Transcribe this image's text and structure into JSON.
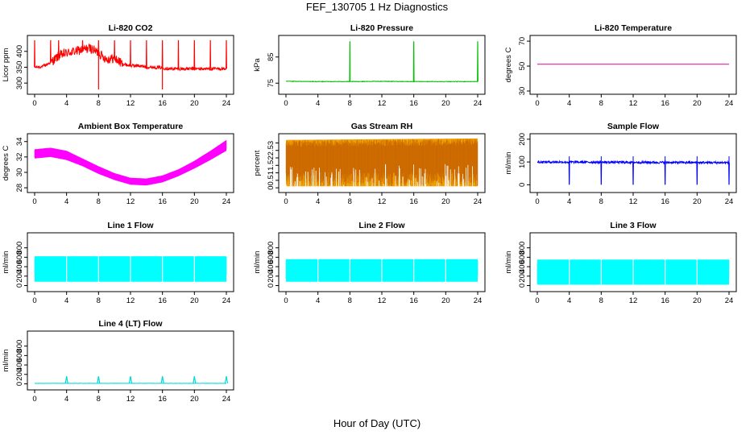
{
  "figure": {
    "title": "FEF_130705  1 Hz Diagnostics",
    "xlabel": "Hour of Day (UTC)"
  },
  "chart_data": [
    {
      "type": "line",
      "title": "Li-820 CO2",
      "ylabel": "Licor ppm",
      "color": "#ff0000",
      "xlim": [
        0,
        24
      ],
      "xticks": [
        0,
        4,
        8,
        12,
        16,
        20,
        24
      ],
      "ylim": [
        275,
        440
      ],
      "yticks": [
        300,
        350,
        400
      ],
      "series": [
        {
          "x": [
            0,
            1,
            2,
            3,
            4,
            5,
            6,
            7,
            8,
            9,
            10,
            11,
            12,
            13,
            14,
            15,
            16,
            17,
            18,
            19,
            20,
            21,
            22,
            23,
            24
          ],
          "values": [
            350,
            352,
            365,
            385,
            395,
            400,
            405,
            410,
            395,
            375,
            378,
            360,
            355,
            355,
            350,
            350,
            348,
            345,
            345,
            345,
            345,
            345,
            345,
            345,
            345
          ]
        }
      ],
      "spikes_at": [
        0,
        2,
        3,
        6,
        8,
        10,
        12,
        14,
        16,
        18,
        20,
        22,
        24
      ]
    },
    {
      "type": "line",
      "title": "Li-820 Pressure",
      "ylabel": "kPa",
      "color": "#00c000",
      "xlim": [
        0,
        24
      ],
      "xticks": [
        0,
        4,
        8,
        12,
        16,
        20,
        24
      ],
      "ylim": [
        72,
        92
      ],
      "yticks": [
        75,
        85
      ],
      "series": [
        {
          "x": [
            0,
            4,
            8,
            12,
            16,
            20,
            24
          ],
          "values": [
            75.7,
            75.6,
            75.6,
            75.7,
            75.6,
            75.6,
            75.6
          ]
        }
      ],
      "spikes_at": [
        8,
        16,
        24
      ],
      "spike_value": 91
    },
    {
      "type": "line",
      "title": "Li-820 Temperature",
      "ylabel": "degrees C",
      "color": "#e000a0",
      "xlim": [
        0,
        24
      ],
      "xticks": [
        0,
        4,
        8,
        12,
        16,
        20,
        24
      ],
      "ylim": [
        30,
        72
      ],
      "yticks": [
        30,
        50,
        70
      ],
      "series": [
        {
          "x": [
            0,
            24
          ],
          "values": [
            51.5,
            51.5
          ]
        }
      ]
    },
    {
      "type": "area",
      "title": "Ambient Box Temperature",
      "ylabel": "degrees C",
      "color": "#ff00ff",
      "xlim": [
        0,
        24
      ],
      "xticks": [
        0,
        4,
        8,
        12,
        16,
        20,
        24
      ],
      "ylim": [
        27.8,
        34.6
      ],
      "yticks": [
        28,
        30,
        32,
        34
      ],
      "series": [
        {
          "name": "max",
          "x": [
            0,
            2,
            4,
            6,
            8,
            10,
            12,
            14,
            16,
            18,
            20,
            22,
            24
          ],
          "values": [
            33.0,
            33.2,
            32.8,
            31.8,
            30.8,
            29.9,
            29.3,
            29.2,
            29.6,
            30.4,
            31.5,
            32.8,
            34.2
          ]
        },
        {
          "name": "min",
          "x": [
            0,
            2,
            4,
            6,
            8,
            10,
            12,
            14,
            16,
            18,
            20,
            22,
            24
          ],
          "values": [
            31.8,
            32.0,
            31.6,
            30.8,
            29.8,
            29.0,
            28.4,
            28.3,
            28.7,
            29.5,
            30.5,
            31.6,
            32.8
          ]
        }
      ]
    },
    {
      "type": "area",
      "title": "Gas Stream RH",
      "ylabel": "percent",
      "color": "#f0a000",
      "xlim": [
        0,
        24
      ],
      "xticks": [
        0,
        4,
        8,
        12,
        16,
        20,
        24
      ],
      "ylim": [
        -0.1,
        3.4
      ],
      "yticks": [
        0.0,
        0.5,
        1.0,
        1.5,
        2.0,
        2.5,
        3.0
      ],
      "series": [
        {
          "name": "max",
          "x": [
            0,
            24
          ],
          "values": [
            3.2,
            3.3
          ]
        },
        {
          "name": "min",
          "x": [
            0,
            24
          ],
          "values": [
            0.1,
            0.1
          ]
        }
      ]
    },
    {
      "type": "line",
      "title": "Sample Flow",
      "ylabel": "ml/min",
      "color": "#0000ff",
      "xlim": [
        0,
        24
      ],
      "xticks": [
        0,
        4,
        8,
        12,
        16,
        20,
        24
      ],
      "ylim": [
        -20,
        210
      ],
      "yticks": [
        0,
        100,
        200
      ],
      "series": [
        {
          "x": [
            0,
            24
          ],
          "values": [
            100,
            97
          ]
        }
      ],
      "spikes_at": [
        4,
        8,
        12,
        16,
        20,
        24
      ],
      "dip_value": 0
    },
    {
      "type": "area",
      "title": "Line 1 Flow",
      "ylabel": "ml/min",
      "color": "#00ffff",
      "xlim": [
        0,
        24
      ],
      "xticks": [
        0,
        4,
        8,
        12,
        16,
        20,
        24
      ],
      "ylim": [
        -60,
        1050
      ],
      "yticks": [
        0,
        200,
        400,
        600,
        800
      ],
      "series": [
        {
          "name": "max",
          "x": [
            0,
            24
          ],
          "values": [
            620,
            620
          ]
        },
        {
          "name": "min",
          "x": [
            0,
            24
          ],
          "values": [
            80,
            80
          ]
        }
      ]
    },
    {
      "type": "area",
      "title": "Line 2 Flow",
      "ylabel": "ml/min",
      "color": "#00ffff",
      "xlim": [
        0,
        24
      ],
      "xticks": [
        0,
        4,
        8,
        12,
        16,
        20,
        24
      ],
      "ylim": [
        -60,
        1050
      ],
      "yticks": [
        0,
        200,
        400,
        600,
        800
      ],
      "series": [
        {
          "name": "max",
          "x": [
            0,
            24
          ],
          "values": [
            560,
            560
          ]
        },
        {
          "name": "min",
          "x": [
            0,
            24
          ],
          "values": [
            80,
            80
          ]
        }
      ]
    },
    {
      "type": "area",
      "title": "Line 3 Flow",
      "ylabel": "ml/min",
      "color": "#00ffff",
      "xlim": [
        0,
        24
      ],
      "xticks": [
        0,
        4,
        8,
        12,
        16,
        20,
        24
      ],
      "ylim": [
        -60,
        1050
      ],
      "yticks": [
        0,
        200,
        400,
        600,
        800
      ],
      "series": [
        {
          "name": "max",
          "x": [
            0,
            24
          ],
          "values": [
            550,
            550
          ]
        },
        {
          "name": "min",
          "x": [
            0,
            24
          ],
          "values": [
            20,
            20
          ]
        }
      ]
    },
    {
      "type": "line",
      "title": "Line 4 (LT) Flow",
      "ylabel": "ml/min",
      "color": "#00d8d8",
      "xlim": [
        0,
        24
      ],
      "xticks": [
        0,
        4,
        8,
        12,
        16,
        20,
        24
      ],
      "ylim": [
        -60,
        1050
      ],
      "yticks": [
        0,
        200,
        400,
        600,
        800
      ],
      "series": [
        {
          "x": [
            0,
            24
          ],
          "values": [
            10,
            10
          ]
        }
      ],
      "spikes_at": [
        4,
        8,
        12,
        16,
        20,
        24
      ],
      "spike_value": 160
    }
  ]
}
